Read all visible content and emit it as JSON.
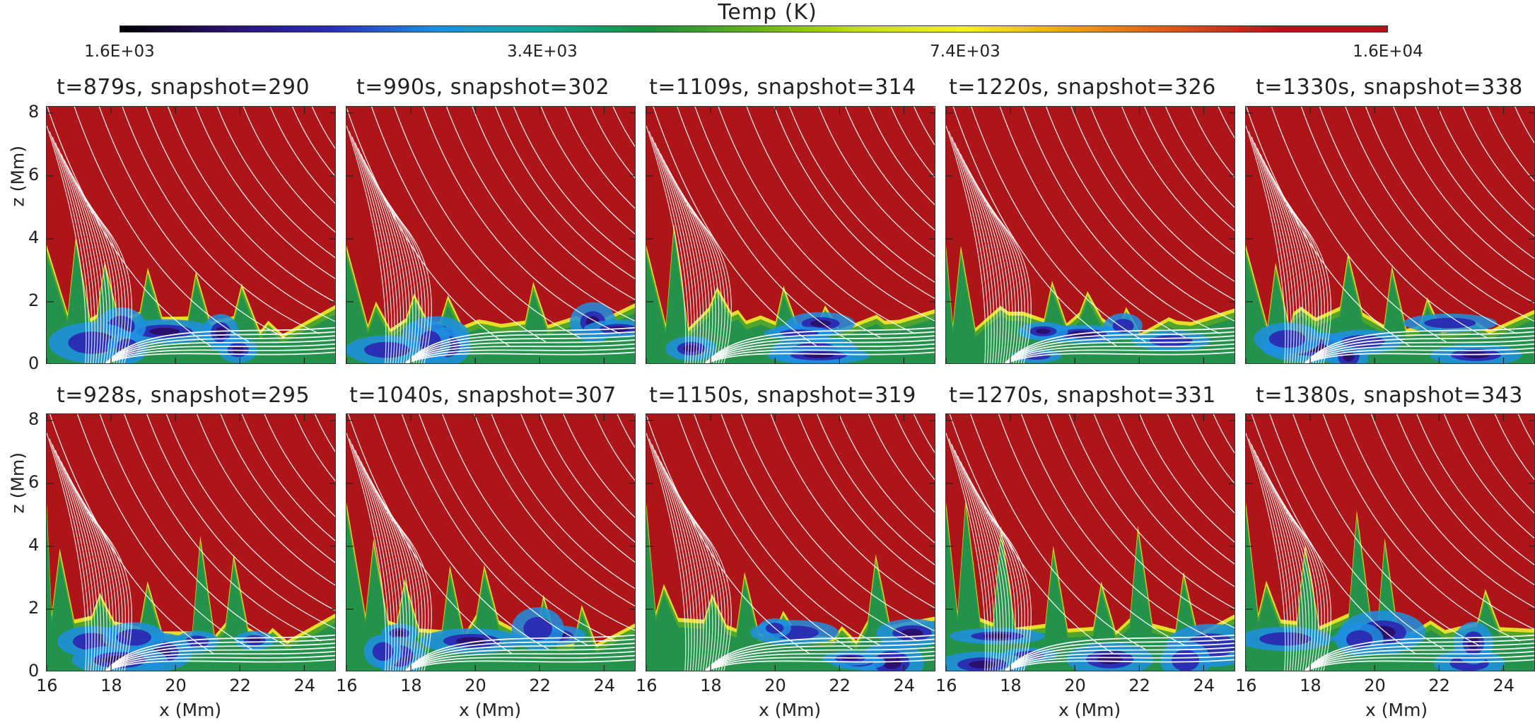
{
  "colorbar": {
    "title": "Temp (K)",
    "tick_labels": [
      "1.6E+03",
      "3.4E+03",
      "7.4E+03",
      "1.6E+04"
    ],
    "colormap": [
      "#000000",
      "#2a0f6e",
      "#2b2fb4",
      "#1f8fe0",
      "#14a7a0",
      "#1b8f3a",
      "#62b21f",
      "#c6dd1b",
      "#f6f21a",
      "#eba020",
      "#d8561c",
      "#ad1519",
      "#ad1519"
    ]
  },
  "panels_row1": [
    {
      "title": "t=879s, snapshot=290"
    },
    {
      "title": "t=990s, snapshot=302"
    },
    {
      "title": "t=1109s, snapshot=314"
    },
    {
      "title": "t=1220s, snapshot=326"
    },
    {
      "title": "t=1330s, snapshot=338"
    }
  ],
  "panels_row2": [
    {
      "title": "t=928s, snapshot=295"
    },
    {
      "title": "t=1040s, snapshot=307"
    },
    {
      "title": "t=1150s, snapshot=319"
    },
    {
      "title": "t=1270s, snapshot=331"
    },
    {
      "title": "t=1380s, snapshot=343"
    }
  ],
  "axes": {
    "xlabel": "x (Mm)",
    "ylabel": "z (Mm)",
    "xticks": [
      "16",
      "18",
      "20",
      "22",
      "24"
    ],
    "yticks": [
      "0",
      "2",
      "4",
      "6",
      "8"
    ]
  },
  "chart_data": {
    "type": "heatmap",
    "quantity": "Temp (K)",
    "color_scale": "log",
    "color_range": [
      1600,
      16000
    ],
    "color_ticks": [
      1600,
      3400,
      7400,
      16000
    ],
    "xlim": [
      16,
      25
    ],
    "ylim": [
      0,
      8.2
    ],
    "xticks": [
      16,
      18,
      20,
      22,
      24
    ],
    "yticks": [
      0,
      2,
      4,
      6,
      8
    ],
    "overlay": "white magnetic field lines",
    "panels": [
      {
        "t_s": 879,
        "snapshot": 290
      },
      {
        "t_s": 990,
        "snapshot": 302
      },
      {
        "t_s": 1109,
        "snapshot": 314
      },
      {
        "t_s": 1220,
        "snapshot": 326
      },
      {
        "t_s": 1330,
        "snapshot": 338
      },
      {
        "t_s": 928,
        "snapshot": 295
      },
      {
        "t_s": 1040,
        "snapshot": 307
      },
      {
        "t_s": 1150,
        "snapshot": 319
      },
      {
        "t_s": 1270,
        "snapshot": 331
      },
      {
        "t_s": 1380,
        "snapshot": 343
      }
    ]
  }
}
